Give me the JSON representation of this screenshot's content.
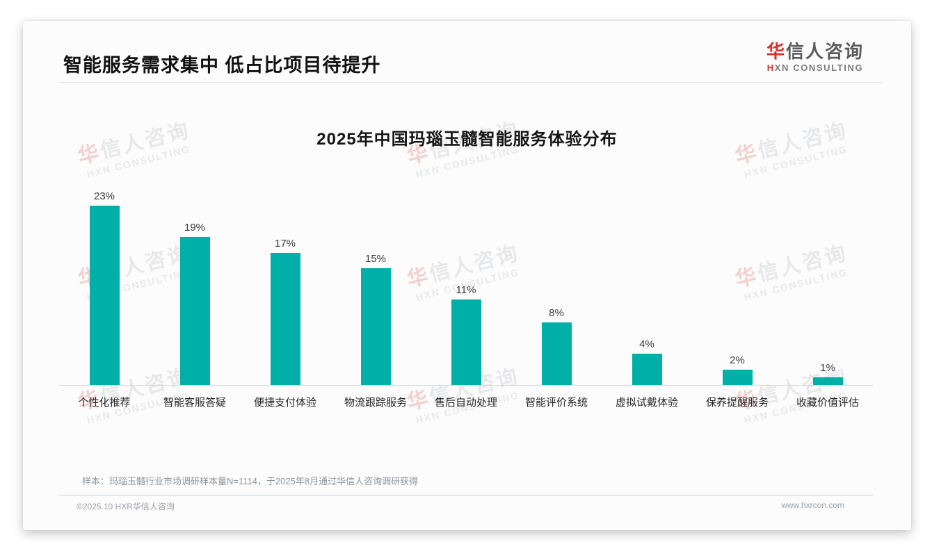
{
  "header": {
    "title": "智能服务需求集中 低占比项目待提升"
  },
  "logo": {
    "cn_accent": "华",
    "cn_rest": "信人咨询",
    "en_accent": "H",
    "en_rest": "XN CONSULTING"
  },
  "watermark": {
    "cn_accent": "华",
    "cn_rest": "信人咨询",
    "en": "HXN CONSULTING",
    "count": 9
  },
  "chart_data": {
    "type": "bar",
    "title": "2025年中国玛瑙玉髓智能服务体验分布",
    "categories": [
      "个性化推荐",
      "智能客服答疑",
      "便捷支付体验",
      "物流跟踪服务",
      "售后自动处理",
      "智能评价系统",
      "虚拟试戴体验",
      "保养提醒服务",
      "收藏价值评估"
    ],
    "values": [
      23,
      19,
      17,
      15,
      11,
      8,
      4,
      2,
      1
    ],
    "value_suffix": "%",
    "bar_color": "#00AFA8",
    "xlabel": "",
    "ylabel": "",
    "ylim": [
      0,
      25
    ],
    "grid": false,
    "legend": false,
    "value_labels_position": "above-bars"
  },
  "note": {
    "text": "样本：玛瑙玉髓行业市场调研样本量N=1114，于2025年8月通过华信人咨询调研获得"
  },
  "footer": {
    "left": "©2025.10 HXR华信人咨询",
    "right": "www.hxrcon.com"
  },
  "colors": {
    "bar": "#00AFA8",
    "accent_red": "#D3312C",
    "note_gray": "#8C96A0"
  }
}
